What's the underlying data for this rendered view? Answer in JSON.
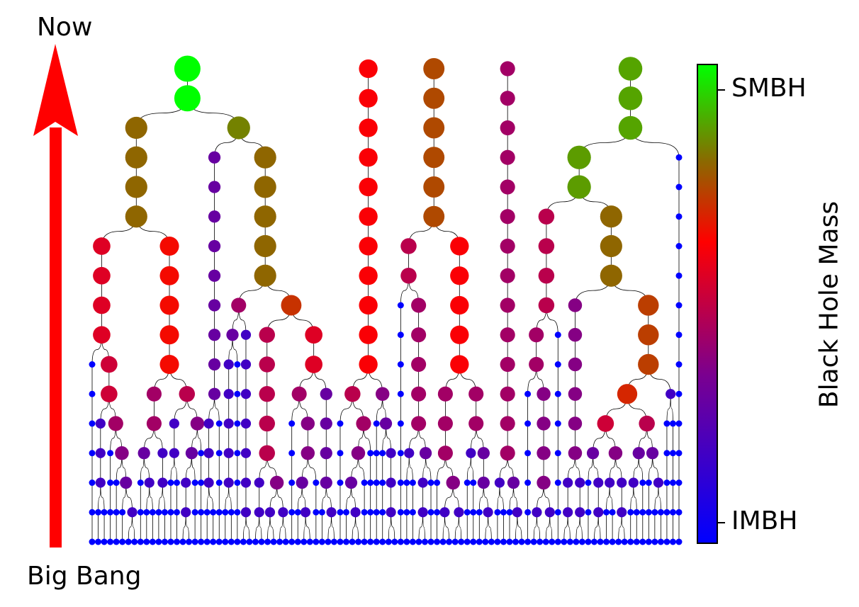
{
  "arrow": {
    "top_label": "Now",
    "bottom_label": "Big Bang",
    "color": "#ff0000"
  },
  "colorbar": {
    "title": "Black Hole Mass",
    "high_label": "SMBH",
    "low_label": "IMBH",
    "colors": {
      "low": "#0000ff",
      "mid_low": "#7a0090",
      "mid": "#ff0000",
      "mid_high": "#8a6a00",
      "high": "#00ff00"
    }
  }
}
